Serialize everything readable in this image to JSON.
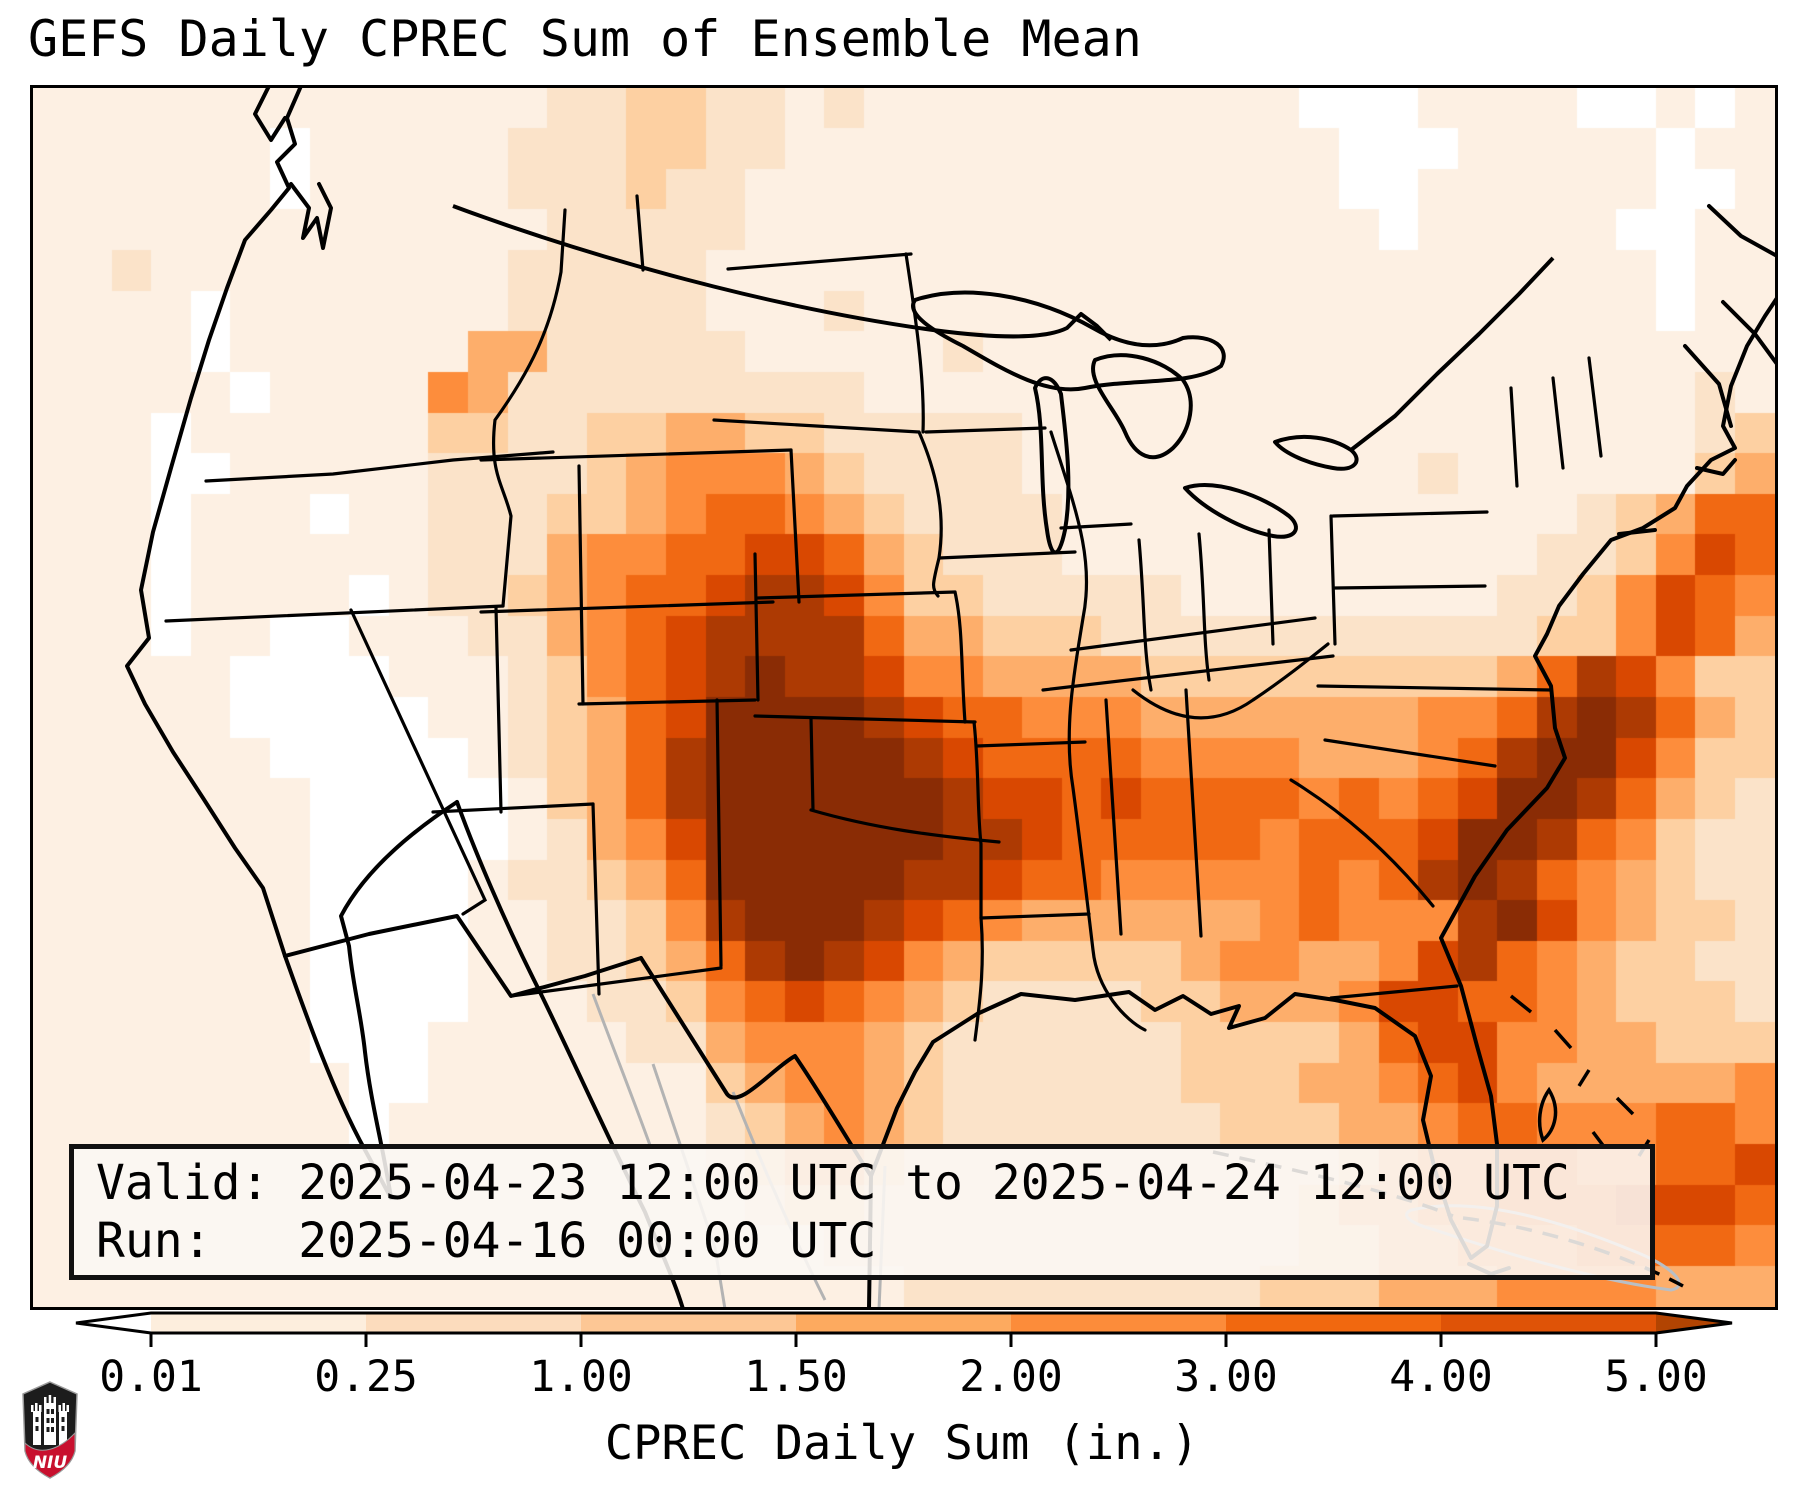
{
  "title": "GEFS Daily CPREC Sum of Ensemble Mean",
  "info_box": {
    "line1": "Valid: 2025-04-23 12:00 UTC to 2025-04-24 12:00 UTC",
    "line2": "Run:   2025-04-16 00:00 UTC",
    "valid_label": "Valid:",
    "valid_value": "2025-04-23 12:00 UTC to 2025-04-24 12:00 UTC",
    "run_label": "Run:",
    "run_value": "2025-04-16 00:00 UTC"
  },
  "colorbar": {
    "label": "CPREC Daily Sum (in.)",
    "ticks": [
      "0.01",
      "0.25",
      "1.00",
      "1.50",
      "2.00",
      "3.00",
      "4.00",
      "5.00"
    ],
    "segment_colors": [
      "#fdeedd",
      "#fcdcbd",
      "#fdc795",
      "#fdaa5f",
      "#fc8c3a",
      "#f1680f",
      "#df5307"
    ],
    "under_color": "#ffffff",
    "over_color": "#b24402",
    "outline_color": "#000000"
  },
  "logo": {
    "text": "NIU",
    "shield_black": "#1c1c1c",
    "shield_red": "#c8102e",
    "outline_gray": "#9a9a9a"
  },
  "colors": {
    "background": "#ffffff",
    "map_border": "#000000",
    "state_lines": "#000000",
    "foreign_lines": "#b3b3b3",
    "info_box_bg": "#faf7f4"
  },
  "chart_data": {
    "type": "heatmap",
    "title": "GEFS Daily CPREC Sum of Ensemble Mean",
    "units": "in.",
    "xlabel": "CPREC Daily Sum (in.)",
    "levels": [
      0.01,
      0.25,
      1.0,
      1.5,
      2.0,
      3.0,
      4.0,
      5.0
    ],
    "legend_position": "bottom",
    "region": "CONUS with surrounding areas (Canada, Mexico, Gulf of Mexico, western Atlantic, Cuba)",
    "maxima_note": "Darkest values (>5 in.) over Oklahoma/East Texas/Louisiana and offshore of the Carolinas; secondary band Colorado-Kansas and along Southeast US into the Atlantic",
    "palette": [
      "#ffffff",
      "#fdf0e3",
      "#fbe3c9",
      "#fdd0a2",
      "#fdae6b",
      "#fd8d3c",
      "#f16913",
      "#d94801",
      "#ad3a03",
      "#8a2c05"
    ],
    "ncols": 44,
    "nrows": 30,
    "grid_rows": [
      "11111111111112233221211111111111000111100101",
      "11111101111122233221111111111111100011111011",
      "11111101111122232211111111111111100111111001",
      "11111111111112222211111111111111110111110011",
      "11211111111122222111111111111111111111111011",
      "11110111111122222111211111111111111111111011",
      "11110111111442222211111211111111111111111111",
      "11111011115422222222211111111111111111111121",
      "11101111113322334433222221111111111111111123",
      "11100111112222345554322221111111111211111134",
      "11101110112223345665432222111111111111123466",
      "11101111112224556677643222111111111111223576",
      "11101111012234566788753322222111111112235765",
      "11101100111224567888864433322222222222335764",
      "11111000011123567898875544443333333334687533",
      "11111000001123467999987665554444444556898643",
      "11111100000123468999998766665555444568997533",
      "11111110000013468999999877676666565679986432",
      "11111110000012457999999887666665666799865322",
      "11111110000122346999998876655555656898654322",
      "11111110000112235899987654444445655589754332",
      "11111110000112234689875433333455445786543322",
      "11111110000111223567654322223344457766543332",
      "11111110001111122455543222222333346775544333",
      "11111111001111111345543222222333445675444445",
      "11111111011111111234543222222233344566555665",
      "11111111111111111234432222222222234556655667",
      "11111111111111111123322222222222344556667776",
      "11111111111111111111222222222222334455566665",
      "11111111111111111111112222222223334445555444"
    ]
  }
}
